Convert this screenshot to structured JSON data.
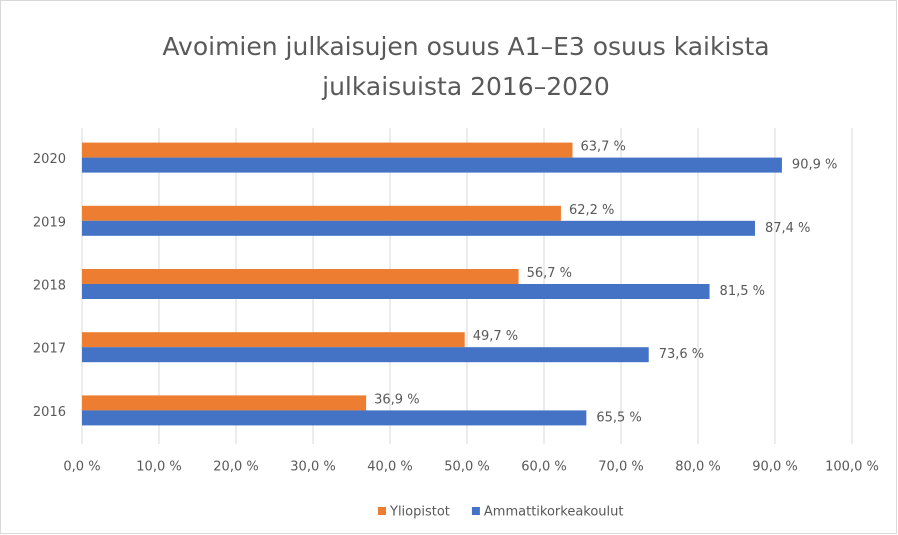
{
  "chart_data": {
    "type": "hbar",
    "title": [
      "Avoimien julkaisujen osuus A1–E3 osuus kaikista",
      "julkaisuista 2016–2020"
    ],
    "categories": [
      "2016",
      "2017",
      "2018",
      "2019",
      "2020"
    ],
    "series": [
      {
        "name": "Yliopistot",
        "color": "#ed7d31",
        "values": [
          36.9,
          49.7,
          56.7,
          62.2,
          63.7
        ],
        "value_labels": [
          "36,9 %",
          "49,7 %",
          "56,7 %",
          "62,2 %",
          "63,7 %"
        ]
      },
      {
        "name": "Ammattikorkeakoulut",
        "color": "#4472c4",
        "values": [
          65.5,
          73.6,
          81.5,
          87.4,
          90.9
        ],
        "value_labels": [
          "65,5 %",
          "73,6 %",
          "81,5 %",
          "87,4 %",
          "90,9 %"
        ]
      }
    ],
    "xlim": [
      0,
      100
    ],
    "xticks": [
      {
        "value": 0,
        "label": "0,0 %"
      },
      {
        "value": 10,
        "label": "10,0 %"
      },
      {
        "value": 20,
        "label": "20,0 %"
      },
      {
        "value": 30,
        "label": "30,0 %"
      },
      {
        "value": 40,
        "label": "40,0 %"
      },
      {
        "value": 50,
        "label": "50,0 %"
      },
      {
        "value": 60,
        "label": "60,0 %"
      },
      {
        "value": 70,
        "label": "70,0 %"
      },
      {
        "value": 80,
        "label": "80,0 %"
      },
      {
        "value": 90,
        "label": "90,0 %"
      },
      {
        "value": 100,
        "label": "100,0 %"
      }
    ],
    "grid": true,
    "legend": "bottom"
  }
}
